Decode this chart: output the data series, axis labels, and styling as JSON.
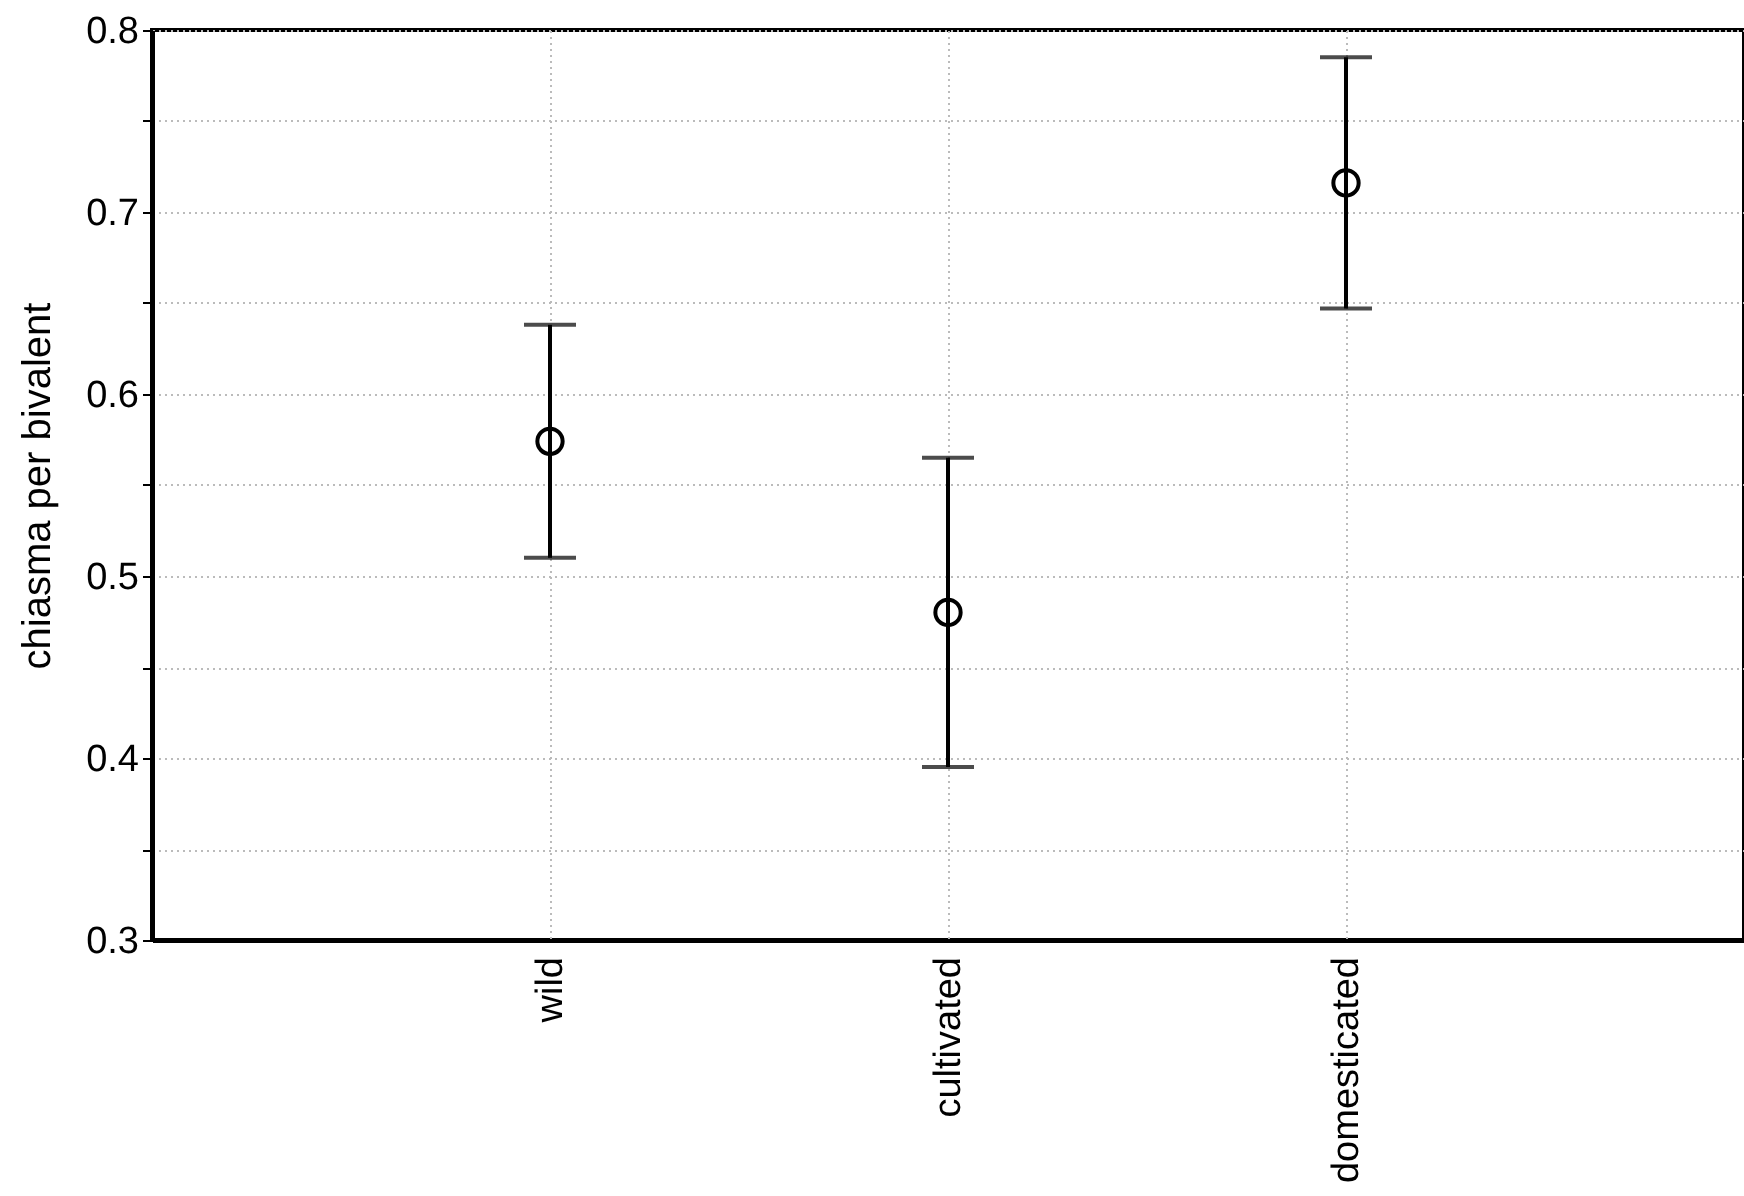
{
  "chart_data": {
    "type": "scatter",
    "ylabel": "chiasma per bivalent",
    "categories": [
      "wild",
      "cultivated",
      "domesticated"
    ],
    "values": [
      0.574,
      0.48,
      0.716
    ],
    "errors": [
      0.064,
      0.085,
      0.069
    ],
    "color": "#000000",
    "marker": "circle",
    "grid": true,
    "ylim": [
      0.3,
      0.8
    ],
    "yticks": [
      0.3,
      {
        "value": 0.35,
        "label": null
      },
      0.4,
      {
        "value": 0.45,
        "label": null
      },
      0.5,
      {
        "value": 0.55,
        "label": null
      },
      0.6,
      {
        "value": 0.65,
        "label": null
      },
      0.7,
      {
        "value": 0.75,
        "label": null
      },
      0.8
    ]
  }
}
